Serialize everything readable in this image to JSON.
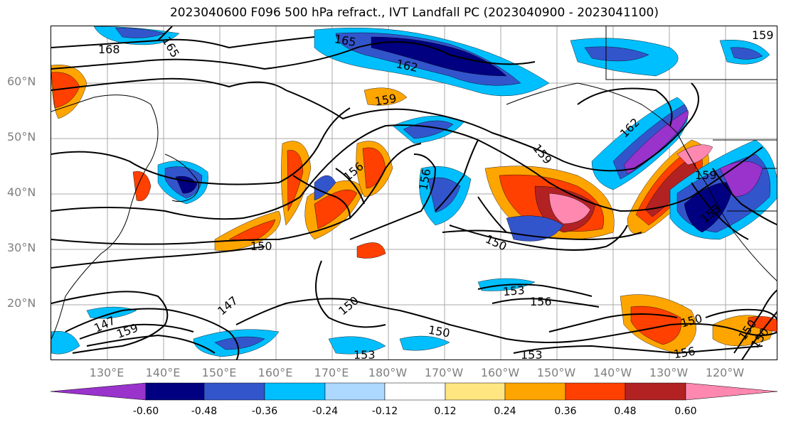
{
  "title": "2023040600 F096 500 hPa refract., IVT Landfall PC (2023040900 - 2023041100)",
  "lat_labels": [
    "60°N",
    "50°N",
    "40°N",
    "30°N",
    "20°N"
  ],
  "lon_labels": [
    "130°E",
    "140°E",
    "150°E",
    "160°E",
    "170°E",
    "180°W",
    "170°W",
    "160°W",
    "150°W",
    "140°W",
    "130°W",
    "120°W"
  ],
  "colorbar": {
    "ticks": [
      "-0.60",
      "-0.48",
      "-0.36",
      "-0.24",
      "-0.12",
      "0.12",
      "0.24",
      "0.36",
      "0.48",
      "0.60"
    ],
    "colors": [
      "#9933cc",
      "#000080",
      "#3355cc",
      "#00bfff",
      "#add8ff",
      "#ffffff",
      "#ffe680",
      "#ffa500",
      "#ff4000",
      "#b22222",
      "#ff88b0"
    ]
  },
  "contour_labels": [
    "168",
    "165",
    "165",
    "162",
    "159",
    "162",
    "159",
    "156",
    "156",
    "150",
    "150",
    "150",
    "147",
    "147",
    "159",
    "153",
    "156",
    "150",
    "150",
    "156",
    "153",
    "150",
    "159",
    "153",
    "153",
    "159",
    "150"
  ]
}
